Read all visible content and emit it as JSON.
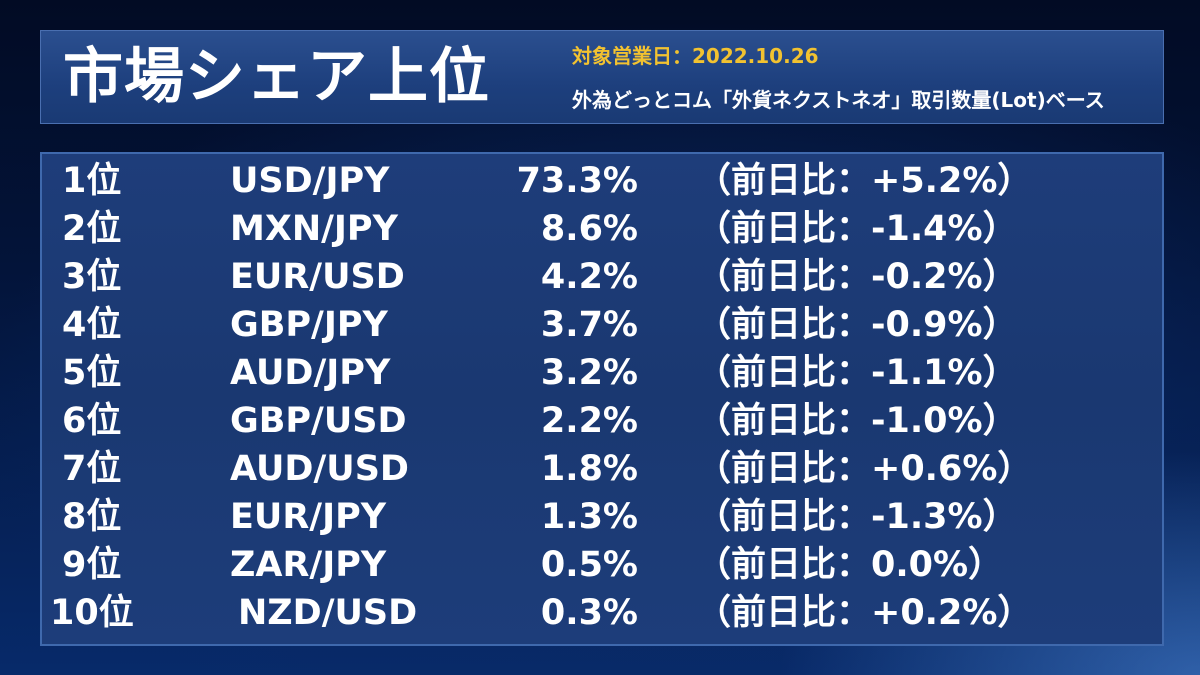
{
  "header": {
    "title": "市場シェア上位",
    "date_label": "対象営業日：2022.10.26",
    "basis_label": "外為どっとコム「外貨ネクストネオ」取引数量(Lot)ベース"
  },
  "rows": [
    {
      "rank": "1位",
      "pair": "USD/JPY",
      "share": "73.3%",
      "change": "（前日比：+5.2%）"
    },
    {
      "rank": "2位",
      "pair": "MXN/JPY",
      "share": "8.6%",
      "change": "（前日比：-1.4%）"
    },
    {
      "rank": "3位",
      "pair": "EUR/USD",
      "share": "4.2%",
      "change": "（前日比：-0.2%）"
    },
    {
      "rank": "4位",
      "pair": "GBP/JPY",
      "share": "3.7%",
      "change": "（前日比：-0.9%）"
    },
    {
      "rank": "5位",
      "pair": "AUD/JPY",
      "share": "3.2%",
      "change": "（前日比：-1.1%）"
    },
    {
      "rank": "6位",
      "pair": "GBP/USD",
      "share": "2.2%",
      "change": "（前日比：-1.0%）"
    },
    {
      "rank": "7位",
      "pair": "AUD/USD",
      "share": "1.8%",
      "change": "（前日比：+0.6%）"
    },
    {
      "rank": "8位",
      "pair": "EUR/JPY",
      "share": "1.3%",
      "change": "（前日比：-1.3%）"
    },
    {
      "rank": "9位",
      "pair": "ZAR/JPY",
      "share": "0.5%",
      "change": "（前日比：0.0%）"
    },
    {
      "rank": "10位",
      "pair": "NZD/USD",
      "share": "0.3%",
      "change": "（前日比：+0.2%）"
    }
  ]
}
